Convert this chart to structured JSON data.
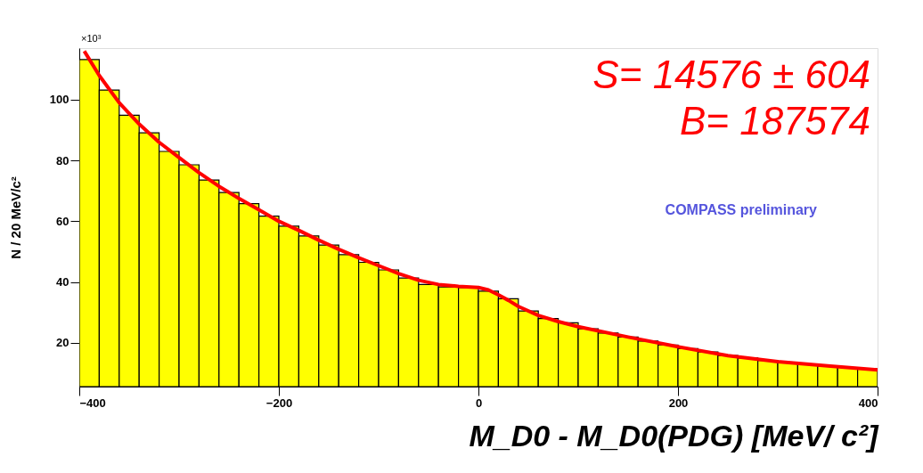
{
  "chart_data": {
    "type": "histogram",
    "xlabel": "M_D0 -  M_D0(PDG)  [MeV/ c²]",
    "ylabel": "N / 20 MeV/c²",
    "bins": [
      -400,
      -380,
      -360,
      -340,
      -320,
      -300,
      -280,
      -260,
      -240,
      -220,
      -200,
      -180,
      -160,
      -140,
      -120,
      -100,
      -80,
      -60,
      -40,
      -20,
      0,
      20,
      40,
      60,
      80,
      100,
      120,
      140,
      160,
      180,
      200,
      220,
      240,
      260,
      280,
      300,
      320,
      340,
      360,
      380,
      400
    ],
    "values": [
      113.2,
      103.2,
      94.9,
      89.1,
      83,
      78.6,
      73.6,
      69.5,
      65.8,
      61.7,
      58.4,
      55.2,
      52.2,
      49,
      46.5,
      44,
      41.3,
      39.2,
      38.4,
      38.2,
      37,
      34.5,
      30.5,
      28,
      26.6,
      24.6,
      23.2,
      21.9,
      20.6,
      19.3,
      18.1,
      17,
      15.8,
      15,
      14.2,
      13.5,
      12.9,
      12.4,
      11.9,
      11.4
    ],
    "color": "#ffff00",
    "series": [
      {
        "type": "line",
        "color": "#ff0000",
        "x": [
          -395,
          -380,
          -360,
          -340,
          -320,
          -300,
          -280,
          -260,
          -240,
          -220,
          -200,
          -180,
          -160,
          -140,
          -120,
          -100,
          -80,
          -60,
          -40,
          -20,
          0,
          10,
          20,
          30,
          40,
          60,
          80,
          100,
          150,
          200,
          250,
          300,
          350,
          400
        ],
        "values": [
          116,
          108,
          99,
          92,
          86,
          81,
          76,
          71.5,
          67.5,
          63.8,
          60,
          57,
          53.8,
          50.8,
          48,
          45.4,
          42.8,
          40.6,
          39.2,
          38.6,
          38.2,
          37.4,
          35.8,
          34,
          32,
          29,
          27,
          25.3,
          21.9,
          18.7,
          15.8,
          13.8,
          12.4,
          11.1
        ]
      }
    ],
    "xlim": [
      -400,
      400
    ],
    "ylim": [
      5.6,
      117
    ],
    "xticks": [
      -400,
      -200,
      0,
      200,
      400
    ],
    "yticks": [
      20,
      40,
      60,
      80,
      100
    ],
    "grid": false,
    "annotations": [
      "×10³",
      "S= 14576 ± 604",
      "B= 187574",
      "COMPASS preliminary"
    ]
  }
}
